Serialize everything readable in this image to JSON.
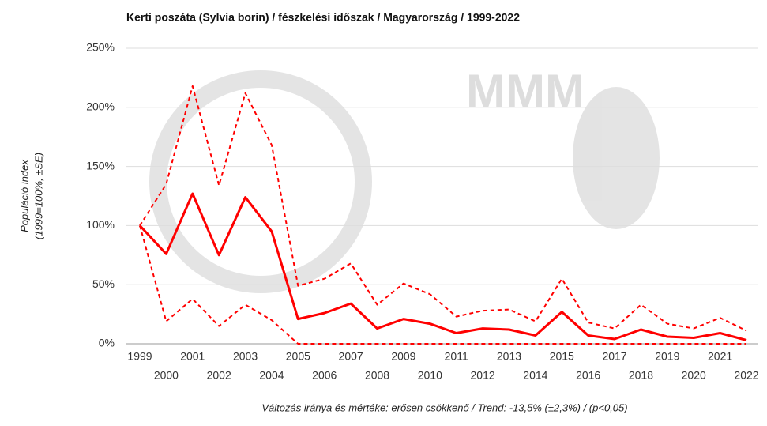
{
  "chart_data": {
    "type": "line",
    "title": "Kerti poszáta (Sylvia borin) / fészkelési időszak / Magyarország / 1999-2022",
    "y_label": [
      "Populáció index",
      "(1999=100%, ±SE)"
    ],
    "footnote": "Változás iránya és mértéke: erősen csökkenő / Trend: -13,5% (±2,3%) / (p<0,05)",
    "categories": [
      "1999",
      "2000",
      "2001",
      "2002",
      "2003",
      "2004",
      "2005",
      "2006",
      "2007",
      "2008",
      "2009",
      "2010",
      "2011",
      "2012",
      "2013",
      "2014",
      "2015",
      "2016",
      "2017",
      "2018",
      "2019",
      "2020",
      "2021",
      "2022"
    ],
    "series": [
      {
        "color": "#ff0000",
        "style": "solid",
        "values": [
          100,
          76,
          127,
          75,
          124,
          95,
          21,
          26,
          34,
          13,
          21,
          17,
          9,
          13,
          12,
          7,
          27,
          7,
          4,
          12,
          6,
          5,
          9,
          3
        ]
      },
      {
        "color": "#ff0000",
        "style": "dashed",
        "values": [
          100,
          135,
          218,
          134,
          212,
          168,
          49,
          55,
          68,
          33,
          51,
          42,
          23,
          28,
          29,
          19,
          55,
          18,
          13,
          33,
          17,
          13,
          22,
          11
        ]
      },
      {
        "color": "#ff0000",
        "style": "dashed",
        "values": [
          100,
          19,
          38,
          15,
          33,
          20,
          0,
          0,
          0,
          0,
          0,
          0,
          0,
          0,
          0,
          0,
          0,
          0,
          0,
          0,
          0,
          0,
          0,
          0
        ]
      }
    ],
    "ylim": [
      0,
      250
    ],
    "yticks": [
      {
        "value": 0,
        "label": "0%"
      },
      {
        "value": 50,
        "label": "50%"
      },
      {
        "value": 100,
        "label": "100%"
      },
      {
        "value": 150,
        "label": "150%"
      },
      {
        "value": 200,
        "label": "200%"
      },
      {
        "value": 250,
        "label": "250%"
      }
    ],
    "grid": true
  }
}
